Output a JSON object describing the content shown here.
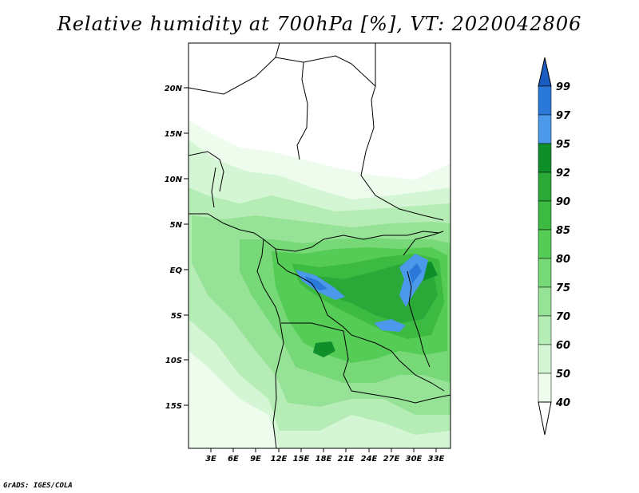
{
  "title": "Relative humidity at 700hPa [%], VT: 2020042806",
  "credit": "GrADS: IGES/COLA",
  "map": {
    "lat_labels": [
      "20N",
      "15N",
      "10N",
      "5N",
      "EQ",
      "5S",
      "10S",
      "15S"
    ],
    "lon_labels": [
      "3E",
      "6E",
      "9E",
      "12E",
      "15E",
      "18E",
      "21E",
      "24E",
      "27E",
      "30E",
      "33E"
    ]
  },
  "colorbar": {
    "labels": [
      "99",
      "97",
      "95",
      "92",
      "90",
      "85",
      "80",
      "75",
      "70",
      "60",
      "50",
      "40"
    ],
    "colors": [
      "#1a5cc0",
      "#2a78d8",
      "#4c98ea",
      "#0f8f2a",
      "#2aa838",
      "#3cba42",
      "#55cc55",
      "#76d876",
      "#96e296",
      "#b6ecb6",
      "#d4f6d4",
      "#eefcee"
    ]
  }
}
